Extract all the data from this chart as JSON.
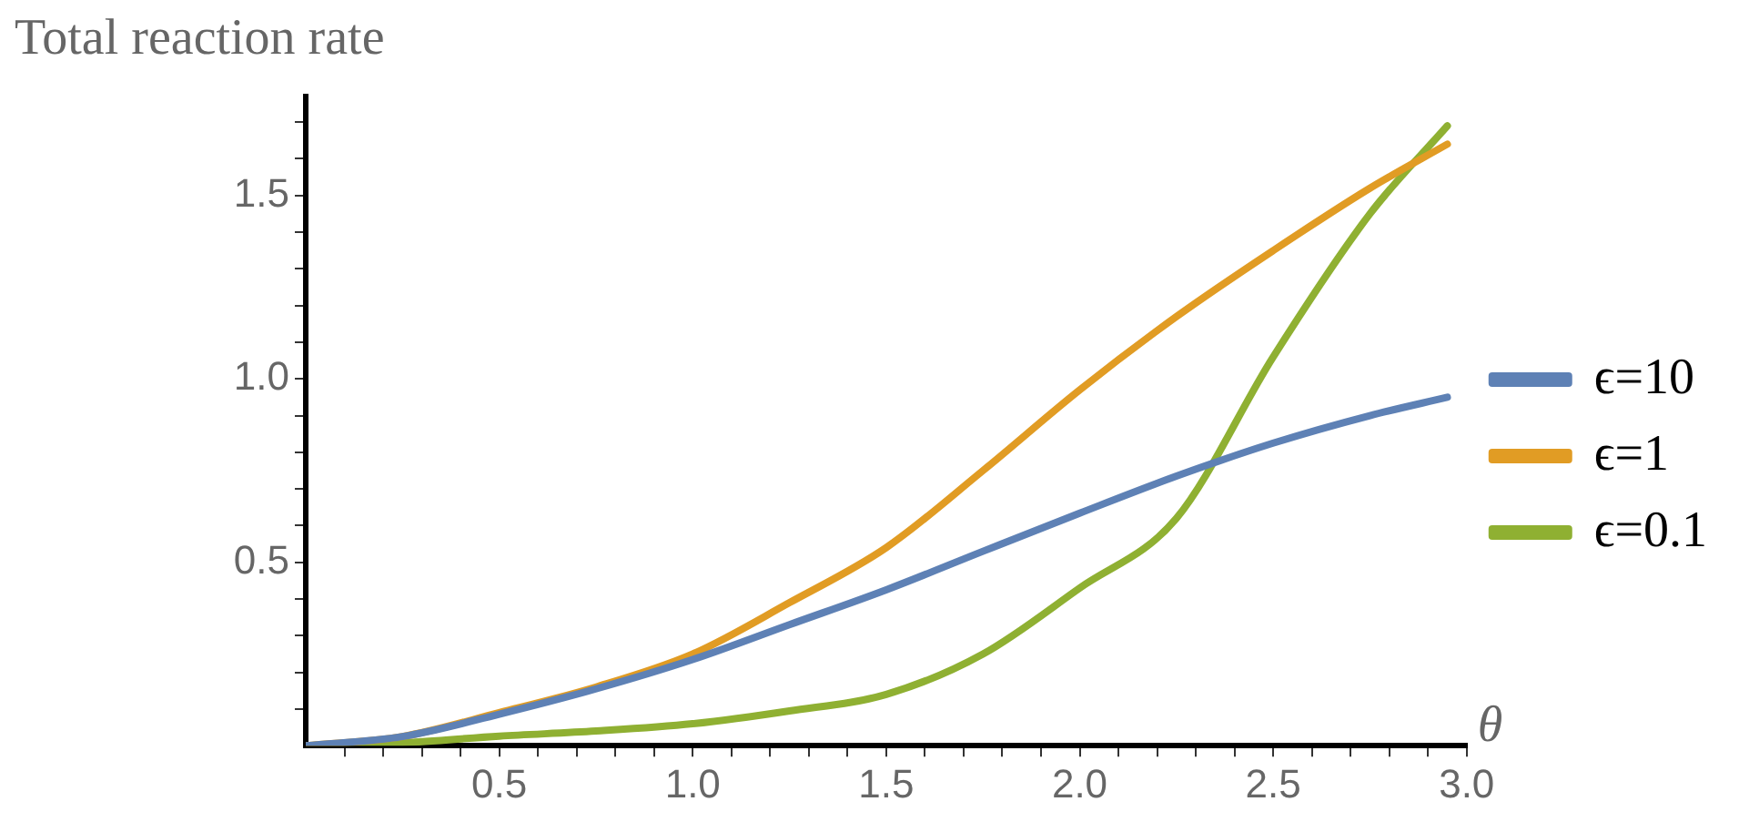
{
  "chart_data": {
    "type": "line",
    "ylabel": "Total reaction rate",
    "xlabel": "θ",
    "xlim": [
      0,
      3.0
    ],
    "ylim": [
      0,
      1.77
    ],
    "xticks": [
      {
        "value": 0.1,
        "label": null
      },
      {
        "value": 0.2,
        "label": null
      },
      {
        "value": 0.3,
        "label": null
      },
      {
        "value": 0.4,
        "label": null
      },
      {
        "value": 0.5,
        "label": "0.5"
      },
      {
        "value": 0.6,
        "label": null
      },
      {
        "value": 0.7,
        "label": null
      },
      {
        "value": 0.8,
        "label": null
      },
      {
        "value": 0.9,
        "label": null
      },
      {
        "value": 1,
        "label": "1.0"
      },
      {
        "value": 1.1,
        "label": null
      },
      {
        "value": 1.2,
        "label": null
      },
      {
        "value": 1.3,
        "label": null
      },
      {
        "value": 1.4,
        "label": null
      },
      {
        "value": 1.5,
        "label": "1.5"
      },
      {
        "value": 1.6,
        "label": null
      },
      {
        "value": 1.7,
        "label": null
      },
      {
        "value": 1.8,
        "label": null
      },
      {
        "value": 1.9,
        "label": null
      },
      {
        "value": 2,
        "label": "2.0"
      },
      {
        "value": 2.1,
        "label": null
      },
      {
        "value": 2.2,
        "label": null
      },
      {
        "value": 2.3,
        "label": null
      },
      {
        "value": 2.4,
        "label": null
      },
      {
        "value": 2.5,
        "label": "2.5"
      },
      {
        "value": 2.6,
        "label": null
      },
      {
        "value": 2.7,
        "label": null
      },
      {
        "value": 2.8,
        "label": null
      },
      {
        "value": 2.9,
        "label": null
      },
      {
        "value": 3,
        "label": "3.0"
      }
    ],
    "yticks": [
      {
        "value": 0.1,
        "label": null
      },
      {
        "value": 0.2,
        "label": null
      },
      {
        "value": 0.3,
        "label": null
      },
      {
        "value": 0.4,
        "label": null
      },
      {
        "value": 0.5,
        "label": "0.5"
      },
      {
        "value": 0.6,
        "label": null
      },
      {
        "value": 0.7,
        "label": null
      },
      {
        "value": 0.8,
        "label": null
      },
      {
        "value": 0.9,
        "label": null
      },
      {
        "value": 1,
        "label": "1.0"
      },
      {
        "value": 1.1,
        "label": null
      },
      {
        "value": 1.2,
        "label": null
      },
      {
        "value": 1.3,
        "label": null
      },
      {
        "value": 1.4,
        "label": null
      },
      {
        "value": 1.5,
        "label": "1.5"
      },
      {
        "value": 1.6,
        "label": null
      },
      {
        "value": 1.7,
        "label": null
      }
    ],
    "x": [
      0,
      0.25,
      0.5,
      0.75,
      1,
      1.25,
      1.5,
      1.75,
      2,
      2.25,
      2.5,
      2.75,
      2.95
    ],
    "series": [
      {
        "name": "ϵ=10",
        "color": "#5e81b5",
        "values": [
          0,
          0.025,
          0.086,
          0.155,
          0.235,
          0.33,
          0.425,
          0.53,
          0.634,
          0.735,
          0.825,
          0.9,
          0.95
        ]
      },
      {
        "name": "ϵ=1",
        "color": "#e19c24",
        "values": [
          0,
          0.025,
          0.09,
          0.16,
          0.25,
          0.39,
          0.54,
          0.75,
          0.97,
          1.17,
          1.35,
          1.52,
          1.64
        ]
      },
      {
        "name": "ϵ=0.1",
        "color": "#8fb032",
        "values": [
          0,
          0.008,
          0.026,
          0.04,
          0.06,
          0.095,
          0.14,
          0.25,
          0.43,
          0.62,
          1.06,
          1.45,
          1.69
        ]
      }
    ],
    "legend": "right",
    "grid": false,
    "marker": "none",
    "line_style": "solid"
  }
}
